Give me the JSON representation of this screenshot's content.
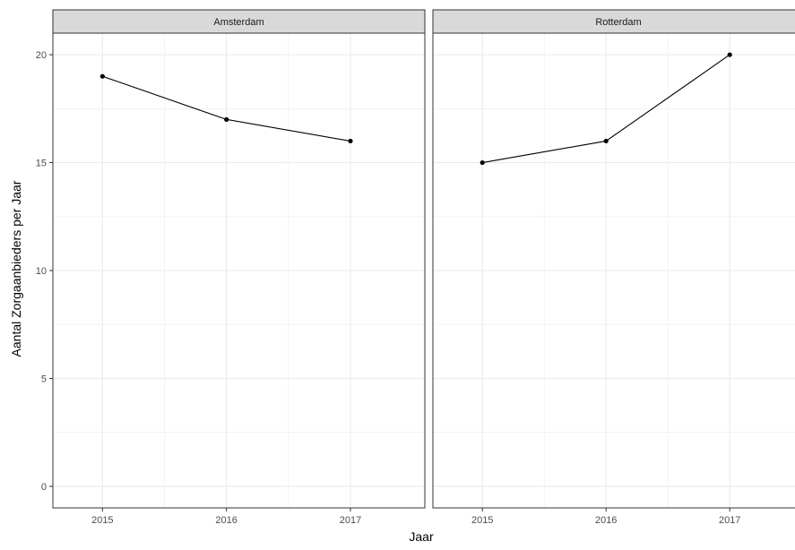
{
  "chart_data": {
    "type": "line",
    "title": "",
    "xlabel": "Jaar",
    "ylabel": "Aantal Zorgaanbieders per Jaar",
    "x": [
      2015,
      2016,
      2017
    ],
    "x_tick_labels": [
      "2015",
      "2016",
      "2017"
    ],
    "y_tick_labels": [
      "0",
      "5",
      "10",
      "15",
      "20"
    ],
    "ylim": [
      -1,
      21
    ],
    "xlim": [
      2014.6,
      2017.6
    ],
    "grid": true,
    "facet_by": "stad",
    "panels": [
      {
        "name": "Amsterdam",
        "values": [
          19,
          17,
          16
        ]
      },
      {
        "name": "Rotterdam",
        "values": [
          15,
          16,
          20
        ]
      }
    ],
    "colors": {
      "line": "#000000",
      "point": "#000000",
      "strip_fill": "#d9d9d9",
      "grid": "#ebebeb",
      "panel_border": "#333333"
    }
  }
}
